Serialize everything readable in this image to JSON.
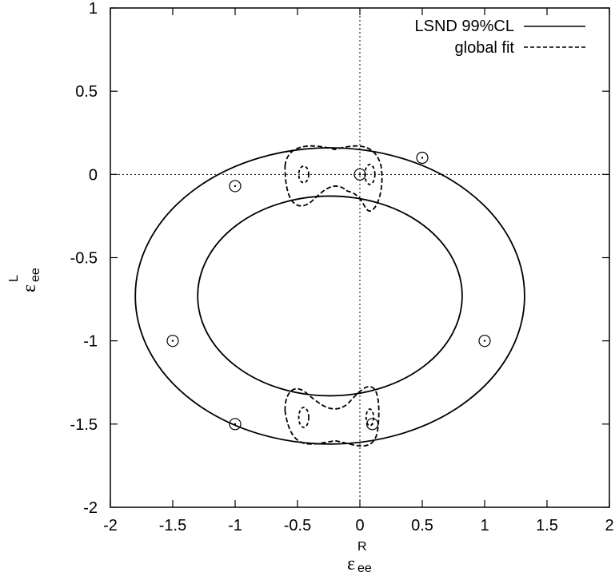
{
  "chart_data": {
    "type": "line",
    "xlim": [
      -2,
      2
    ],
    "ylim": [
      -2,
      1
    ],
    "x_ticks": [
      "-2",
      "-1.5",
      "-1",
      "-0.5",
      "0",
      "0.5",
      "1",
      "1.5",
      "2"
    ],
    "y_ticks": [
      "-2",
      "-1.5",
      "-1",
      "-0.5",
      "0",
      "0.5",
      "1"
    ],
    "xlabel": {
      "base": "ε",
      "sup": "R",
      "sub": "ee"
    },
    "ylabel": {
      "base": "ε",
      "sup": "L",
      "sub": "ee"
    },
    "zero_lines": {
      "x": 0,
      "y": 0,
      "style": "dotted"
    },
    "legend_placement": "top-right",
    "legend": [
      {
        "label": "LSND 99%CL",
        "style": "solid"
      },
      {
        "label": "global fit",
        "style": "dashed"
      }
    ],
    "lsnd_band": {
      "center": [
        -0.24,
        -0.73
      ],
      "outer_radii": [
        1.56,
        0.89
      ],
      "inner_radii": [
        1.06,
        0.6
      ]
    },
    "global_fit": {
      "lobe_centers": [
        [
          -0.45,
          0.0
        ],
        [
          0.08,
          0.0
        ],
        [
          -0.2,
          0.05
        ],
        [
          -0.45,
          -1.46
        ],
        [
          0.08,
          -1.46
        ],
        [
          -0.2,
          -1.5
        ]
      ]
    },
    "markers": [
      {
        "x": 0,
        "y": 0
      },
      {
        "x": 0.5,
        "y": 0.1
      },
      {
        "x": -1,
        "y": -0.07
      },
      {
        "x": -1.5,
        "y": -1
      },
      {
        "x": 1,
        "y": -1
      },
      {
        "x": -1,
        "y": -1.5
      },
      {
        "x": 0.1,
        "y": -1.5
      }
    ]
  }
}
